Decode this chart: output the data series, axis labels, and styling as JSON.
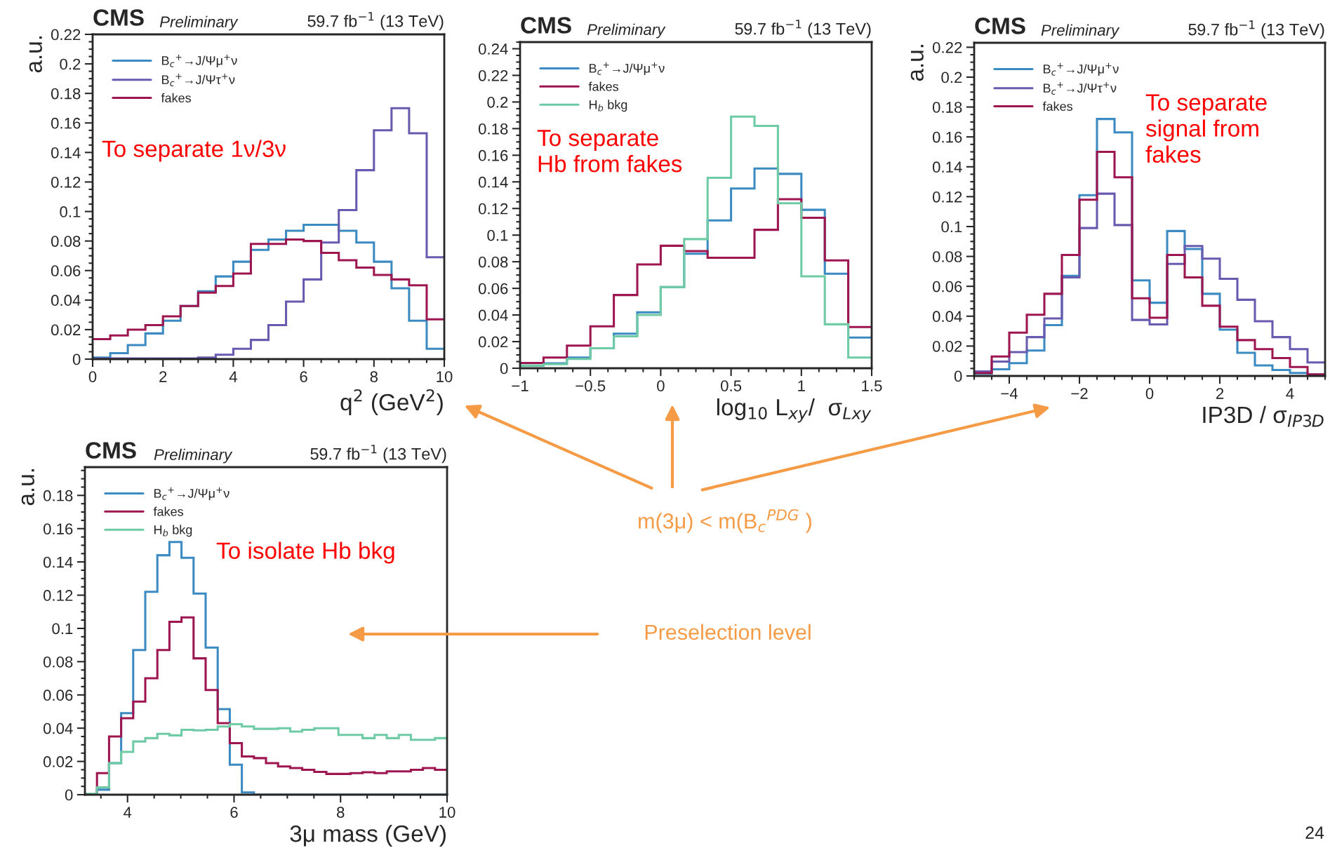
{
  "chart_data": [
    {
      "type": "histogram",
      "title": "CMS",
      "subtitle": "Preliminary",
      "xlabel": "q$^{2}$ (GeV$^{2}$)",
      "ylabel": "a.u.",
      "annotations": [
        "59.7 fb$^{−1}$ (13 TeV)",
        "To separate 1ν/3ν"
      ],
      "bins": [
        0,
        0.5,
        1,
        1.5,
        2,
        2.5,
        3,
        3.5,
        4,
        4.5,
        5,
        5.5,
        6,
        6.5,
        7,
        7.5,
        8,
        8.5,
        9,
        9.5,
        10
      ],
      "series": [
        {
          "name": "B$_{c}$$^{+}$→J/Ψμ$^{+}$ν",
          "color": "#3b8bc2",
          "values": [
            0.001,
            0.004,
            0.0095,
            0.0174,
            0.026,
            0.036,
            0.046,
            0.056,
            0.066,
            0.074,
            0.081,
            0.087,
            0.091,
            0.091,
            0.087,
            0.079,
            0.066,
            0.048,
            0.026,
            0.007
          ]
        },
        {
          "name": "B$_{c}$$^{+}$→J/Ψτ$^{+}$ν",
          "color": "#6a5aaf",
          "values": [
            0.0005,
            0.0005,
            0.0005,
            0.0005,
            0.0005,
            0.0005,
            0.001,
            0.003,
            0.007,
            0.013,
            0.023,
            0.039,
            0.054,
            0.079,
            0.101,
            0.128,
            0.155,
            0.17,
            0.153,
            0.069
          ]
        },
        {
          "name": "fakes",
          "color": "#9e1650",
          "values": [
            0.0135,
            0.016,
            0.02,
            0.023,
            0.029,
            0.036,
            0.045,
            0.0495,
            0.058,
            0.078,
            0.078,
            0.081,
            0.08,
            0.072,
            0.067,
            0.062,
            0.057,
            0.054,
            0.05,
            0.027
          ]
        }
      ],
      "xlim": [
        0,
        10
      ],
      "xticks": [
        0,
        2,
        4,
        6,
        8,
        10
      ],
      "ylim": [
        0,
        0.22
      ],
      "yticks": [
        0,
        0.02,
        0.04,
        0.06,
        0.08,
        0.1,
        0.12,
        0.14,
        0.16,
        0.18,
        0.2,
        0.22
      ],
      "legend": "top left",
      "grid": false
    },
    {
      "type": "histogram",
      "title": "CMS",
      "subtitle": "Preliminary",
      "xlabel": "log$_{10}$ L$_{xy}$/  σ$_{Lxy}$",
      "annotations": [
        "59.7 fb$^{−1}$ (13 TeV)",
        "To separate\nHb from fakes",
        "m(3μ) < m(B$_{c}$$^{PDG}$ )"
      ],
      "bins": [
        -1,
        -0.8333,
        -0.6667,
        -0.5,
        -0.3333,
        -0.1667,
        0,
        0.1667,
        0.3333,
        0.5,
        0.6667,
        0.8333,
        1,
        1.1667,
        1.3333,
        1.5
      ],
      "series": [
        {
          "name": "B$_{c}$$^{+}$→J/Ψμ$^{+}$ν",
          "color": "#3b8bc2",
          "values": [
            0.002,
            0.0037,
            0.008,
            0.015,
            0.026,
            0.042,
            0.061,
            0.086,
            0.111,
            0.135,
            0.15,
            0.146,
            0.119,
            0.071,
            0.023
          ]
        },
        {
          "name": "fakes",
          "color": "#9e1650",
          "values": [
            0.004,
            0.008,
            0.017,
            0.0315,
            0.055,
            0.078,
            0.092,
            0.088,
            0.083,
            0.083,
            0.104,
            0.127,
            0.113,
            0.081,
            0.031
          ]
        },
        {
          "name": "H$_{b}$ bkg",
          "color": "#6fcba5",
          "values": [
            0.002,
            0.003,
            0.007,
            0.015,
            0.024,
            0.04,
            0.061,
            0.097,
            0.143,
            0.189,
            0.182,
            0.124,
            0.069,
            0.033,
            0.008
          ]
        }
      ],
      "xlim": [
        -1,
        1.5
      ],
      "xticks": [
        {
          "value": -1,
          "label": "−1"
        },
        {
          "value": -0.5,
          "label": "−0.5"
        },
        0,
        0.5,
        1,
        1.5
      ],
      "ylim": [
        0,
        0.245
      ],
      "yticks": [
        0,
        0.02,
        0.04,
        0.06,
        0.08,
        0.1,
        0.12,
        0.14,
        0.16,
        0.18,
        0.2,
        0.22,
        0.24
      ],
      "legend": "top left",
      "grid": false
    },
    {
      "type": "histogram",
      "title": "CMS",
      "subtitle": "Preliminary",
      "xlabel": "IP3D / σ$_{IP3D}$",
      "ylabel": "a.u.",
      "annotations": [
        "59.7 fb$^{−1}$ (13 TeV)",
        "To separate\nsignal from\nfakes"
      ],
      "bins": [
        -5,
        -4.5,
        -4,
        -3.5,
        -3,
        -2.5,
        -2,
        -1.5,
        -1,
        -0.5,
        0,
        0.5,
        1,
        1.5,
        2,
        2.5,
        3,
        3.5,
        4,
        4.5,
        5
      ],
      "series": [
        {
          "name": "B$_{c}$$^{+}$→J/Ψμ$^{+}$ν",
          "color": "#3b8bc2",
          "values": [
            0.0015,
            0.0045,
            0.0086,
            0.017,
            0.034,
            0.067,
            0.121,
            0.172,
            0.163,
            0.064,
            0.049,
            0.097,
            0.085,
            0.055,
            0.031,
            0.0155,
            0.007,
            0.004,
            0.002,
            0.001
          ]
        },
        {
          "name": "B$_{c}$$^{+}$→J/Ψτ$^{+}$ν",
          "color": "#6a5aaf",
          "values": [
            0.003,
            0.0096,
            0.016,
            0.026,
            0.0385,
            0.066,
            0.099,
            0.122,
            0.101,
            0.0375,
            0.0345,
            0.075,
            0.087,
            0.0785,
            0.065,
            0.051,
            0.0366,
            0.026,
            0.018,
            0.009
          ]
        },
        {
          "name": "fakes",
          "color": "#9e1650",
          "values": [
            0.002,
            0.013,
            0.029,
            0.041,
            0.055,
            0.081,
            0.118,
            0.15,
            0.133,
            0.052,
            0.039,
            0.081,
            0.066,
            0.047,
            0.033,
            0.024,
            0.018,
            0.012,
            0.006,
            0.001
          ]
        }
      ],
      "xlim": [
        -5,
        5
      ],
      "xticks": [
        {
          "value": -4,
          "label": "−4"
        },
        {
          "value": -2,
          "label": "−2"
        },
        0,
        2,
        4
      ],
      "ylim": [
        0,
        0.223
      ],
      "yticks": [
        0,
        0.02,
        0.04,
        0.06,
        0.08,
        0.1,
        0.12,
        0.14,
        0.16,
        0.18,
        0.2,
        0.22
      ],
      "legend": "top left",
      "grid": false
    },
    {
      "type": "histogram",
      "title": "CMS",
      "subtitle": "Preliminary",
      "xlabel": "3μ mass (GeV)",
      "ylabel": "a.u.",
      "annotations": [
        "59.7 fb$^{−1}$ (13 TeV)",
        "To isolate Hb bkg",
        "Preselection level",
        "24"
      ],
      "bins": [
        3.2,
        3.4267,
        3.6533,
        3.88,
        4.1067,
        4.3333,
        4.56,
        4.7867,
        5.0133,
        5.24,
        5.4667,
        5.6933,
        5.92,
        6.1467,
        6.3733,
        6.6,
        6.8267,
        7.0533,
        7.28,
        7.5067,
        7.7333,
        7.96,
        8.1867,
        8.4133,
        8.64,
        8.8667,
        9.0933,
        9.32,
        9.5467,
        9.7733,
        10
      ],
      "series": [
        {
          "name": "B$_{c}$$^{+}$→J/Ψμ$^{+}$ν",
          "color": "#3b8bc2",
          "values": [
            0,
            0.003,
            0.019,
            0.049,
            0.087,
            0.122,
            0.144,
            0.152,
            0.1425,
            0.121,
            0.0885,
            0.0515,
            0.018,
            0.0014,
            0,
            0,
            0,
            0,
            0,
            0,
            0,
            0,
            0,
            0,
            0,
            0,
            0,
            0,
            0,
            0
          ]
        },
        {
          "name": "fakes",
          "color": "#9e1650",
          "values": [
            0,
            0.013,
            0.035,
            0.046,
            0.056,
            0.07,
            0.087,
            0.104,
            0.1066,
            0.082,
            0.063,
            0.043,
            0.031,
            0.023,
            0.022,
            0.019,
            0.017,
            0.016,
            0.015,
            0.0137,
            0.0125,
            0.0125,
            0.013,
            0.0135,
            0.013,
            0.014,
            0.014,
            0.015,
            0.016,
            0.015
          ]
        },
        {
          "name": "H$_{b}$ bkg",
          "color": "#6fcba5",
          "values": [
            0.0005,
            0.0044,
            0.019,
            0.0257,
            0.032,
            0.034,
            0.0366,
            0.0357,
            0.039,
            0.0387,
            0.039,
            0.041,
            0.0424,
            0.041,
            0.0396,
            0.0396,
            0.04,
            0.038,
            0.039,
            0.04,
            0.04,
            0.036,
            0.036,
            0.034,
            0.036,
            0.034,
            0.036,
            0.033,
            0.033,
            0.034
          ]
        }
      ],
      "xlim": [
        3.2,
        10
      ],
      "xticks": [
        4,
        6,
        8,
        10
      ],
      "ylim": [
        0,
        0.197
      ],
      "yticks": [
        0,
        0.02,
        0.04,
        0.06,
        0.08,
        0.1,
        0.12,
        0.14,
        0.16,
        0.18
      ],
      "legend": "top left",
      "grid": false
    }
  ]
}
